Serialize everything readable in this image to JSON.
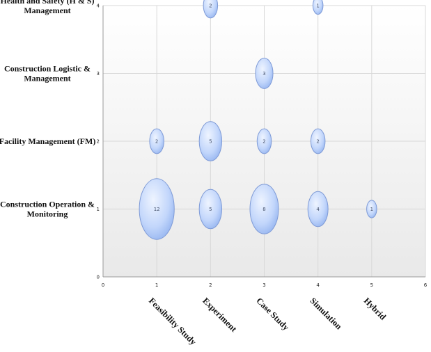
{
  "chart_data": {
    "type": "scatter",
    "subtype": "bubble",
    "title": "",
    "xlabel": "",
    "ylabel": "",
    "xlim": [
      0,
      6
    ],
    "ylim": [
      0,
      4
    ],
    "x_ticks": [
      0,
      1,
      2,
      3,
      4,
      5,
      6
    ],
    "y_ticks": [
      0,
      1,
      2,
      3,
      4
    ],
    "x_category_labels": [
      {
        "x": 1,
        "label": "Feasibility Study"
      },
      {
        "x": 2,
        "label": "Experiment"
      },
      {
        "x": 3,
        "label": "Case Study"
      },
      {
        "x": 4,
        "label": "Simulation"
      },
      {
        "x": 5,
        "label": "Hybrid"
      }
    ],
    "y_category_labels": [
      {
        "y": 4,
        "label": [
          "Health and Safety (H & S)",
          "Management"
        ]
      },
      {
        "y": 3,
        "label": [
          "Construction Logistic &",
          "Management"
        ]
      },
      {
        "y": 2,
        "label": [
          "Facility Management (FM)"
        ]
      },
      {
        "y": 1,
        "label": [
          "Construction Operation &",
          "Monitoring"
        ]
      }
    ],
    "grid": true,
    "legend": "none",
    "bubble_color": "#a9c4f5",
    "points": [
      {
        "x": 2,
        "y": 4,
        "size": 2,
        "label": "2"
      },
      {
        "x": 4,
        "y": 4,
        "size": 1,
        "label": "1"
      },
      {
        "x": 3,
        "y": 3,
        "size": 3,
        "label": "3"
      },
      {
        "x": 1,
        "y": 2,
        "size": 2,
        "label": "2"
      },
      {
        "x": 2,
        "y": 2,
        "size": 5,
        "label": "5"
      },
      {
        "x": 3,
        "y": 2,
        "size": 2,
        "label": "2"
      },
      {
        "x": 4,
        "y": 2,
        "size": 2,
        "label": "2"
      },
      {
        "x": 1,
        "y": 1,
        "size": 12,
        "label": "12"
      },
      {
        "x": 2,
        "y": 1,
        "size": 5,
        "label": "5"
      },
      {
        "x": 3,
        "y": 1,
        "size": 8,
        "label": "8"
      },
      {
        "x": 4,
        "y": 1,
        "size": 4,
        "label": "4"
      },
      {
        "x": 5,
        "y": 1,
        "size": 1,
        "label": "1"
      }
    ]
  }
}
